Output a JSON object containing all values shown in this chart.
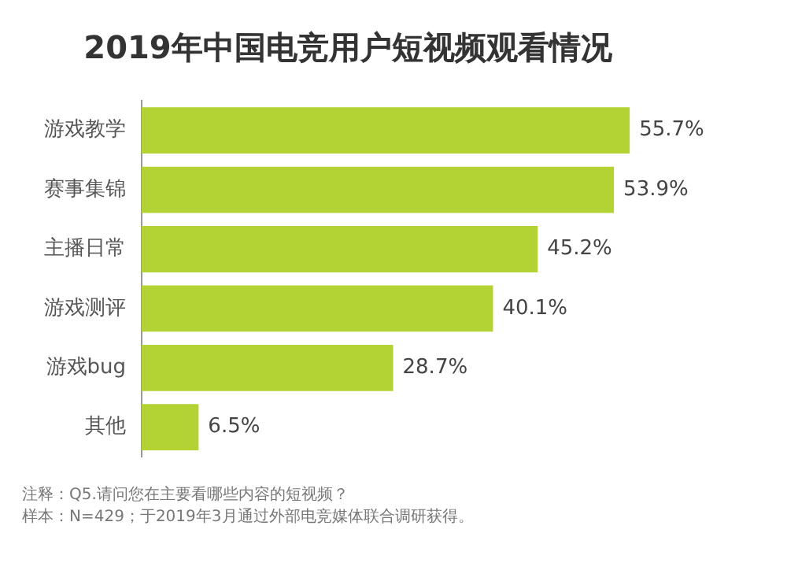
{
  "chart_data": {
    "type": "bar",
    "orientation": "horizontal",
    "title": "2019年中国电竞用户短视频观看情况",
    "categories": [
      "游戏教学",
      "赛事集锦",
      "主播日常",
      "游戏测评",
      "游戏bug",
      "其他"
    ],
    "values": [
      55.7,
      53.9,
      45.2,
      40.1,
      28.7,
      6.5
    ],
    "value_labels": [
      "55.7%",
      "53.9%",
      "45.2%",
      "40.1%",
      "28.7%",
      "6.5%"
    ],
    "color": "#b3d334",
    "annotations": [
      "注释：Q5.请问您在主要看哪些内容的短视频？",
      "样本：N=429；于2019年3月通过外部电竞媒体联合调研获得。"
    ]
  }
}
